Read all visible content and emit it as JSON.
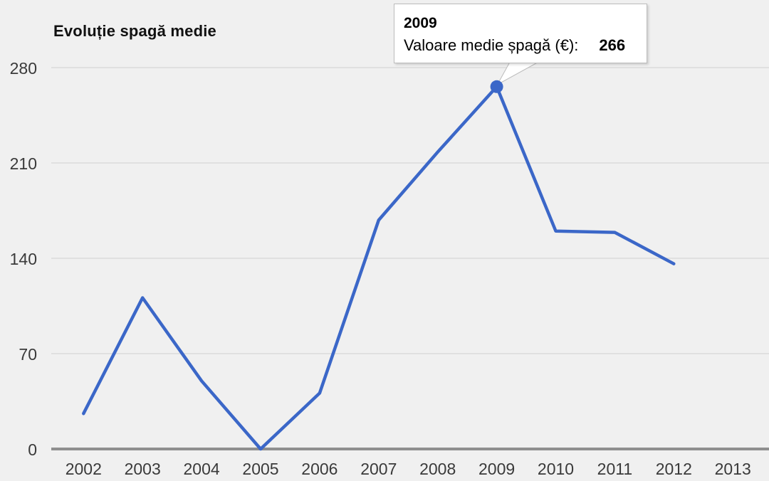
{
  "title": "Evoluție spagă medie",
  "tooltip": {
    "year": "2009",
    "label": "Valoare medie șpagă (€):",
    "value": "266"
  },
  "colors": {
    "background": "#f0f0f0",
    "line": "#3b67c8",
    "gridline": "#e0e0e0",
    "baseline": "#8f8f8f",
    "tooltip_border": "#bcbcbc",
    "label_text": "#3a3a3a"
  },
  "chart_data": {
    "type": "line",
    "title": "Evoluție spagă medie",
    "xlabel": "",
    "ylabel": "",
    "x": [
      "2002",
      "2003",
      "2004",
      "2005",
      "2006",
      "2007",
      "2008",
      "2009",
      "2010",
      "2011",
      "2012",
      "2013"
    ],
    "series": [
      {
        "name": "Valoare medie șpagă (€)",
        "values": [
          26,
          111,
          50,
          0,
          41,
          168,
          218,
          266,
          160,
          159,
          136,
          null
        ]
      }
    ],
    "ylim": [
      0,
      280
    ],
    "yticks": [
      0,
      70,
      140,
      210,
      280
    ],
    "grid": true,
    "legend": "none",
    "highlighted_point": {
      "x": "2009",
      "value": 266,
      "tooltip_label": "Valoare medie șpagă (€)"
    }
  }
}
